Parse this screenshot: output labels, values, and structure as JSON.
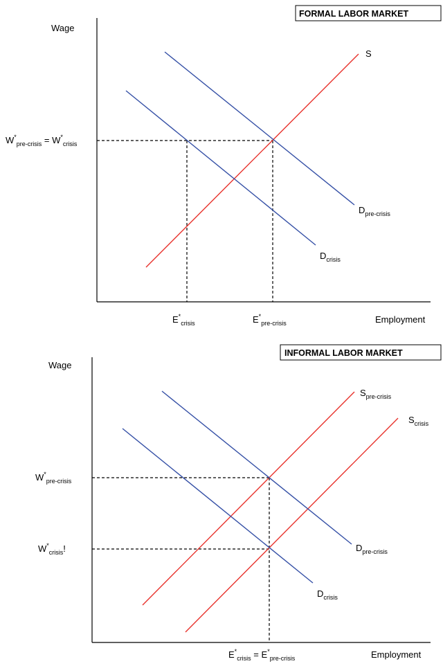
{
  "colors": {
    "supply": "#e8322c",
    "demand": "#3550a6",
    "axis": "#000000",
    "dashed": "#000000"
  },
  "formal": {
    "title": "FORMAL LABOR MARKET",
    "ylabel": "Wage",
    "xlabel": "Employment",
    "w_label": {
      "a": "W",
      "a_sup": "*",
      "a_sub": "pre-crisis",
      "mid": " = W",
      "b_sup": "*",
      "b_sub": "crisis"
    },
    "e_crisis": {
      "main": "E",
      "sup": "*",
      "sub": "crisis"
    },
    "e_pre": {
      "main": "E",
      "sup": "*",
      "sub": "pre-crisis"
    },
    "s_label": "S",
    "d_pre": {
      "main": "D",
      "sub": "pre-crisis"
    },
    "d_crisis": {
      "main": "D",
      "sub": "crisis"
    }
  },
  "informal": {
    "title": "INFORMAL LABOR MARKET",
    "ylabel": "Wage",
    "xlabel": "Employment",
    "w_pre": {
      "main": "W",
      "sup": "*",
      "sub": "pre-crisis"
    },
    "w_crisis": {
      "main": "W",
      "sup": "*",
      "sub": "crisis",
      "suffix": "!"
    },
    "e_label": {
      "a": "E",
      "a_sup": "*",
      "a_sub": "crisis",
      "mid": " = E",
      "b_sup": "*",
      "b_sub": "pre-crisis"
    },
    "s_pre": {
      "main": "S",
      "sub": "pre-crisis"
    },
    "s_crisis": {
      "main": "S",
      "sub": "crisis"
    },
    "d_pre": {
      "main": "D",
      "sub": "pre-crisis"
    },
    "d_crisis": {
      "main": "D",
      "sub": "crisis"
    }
  }
}
